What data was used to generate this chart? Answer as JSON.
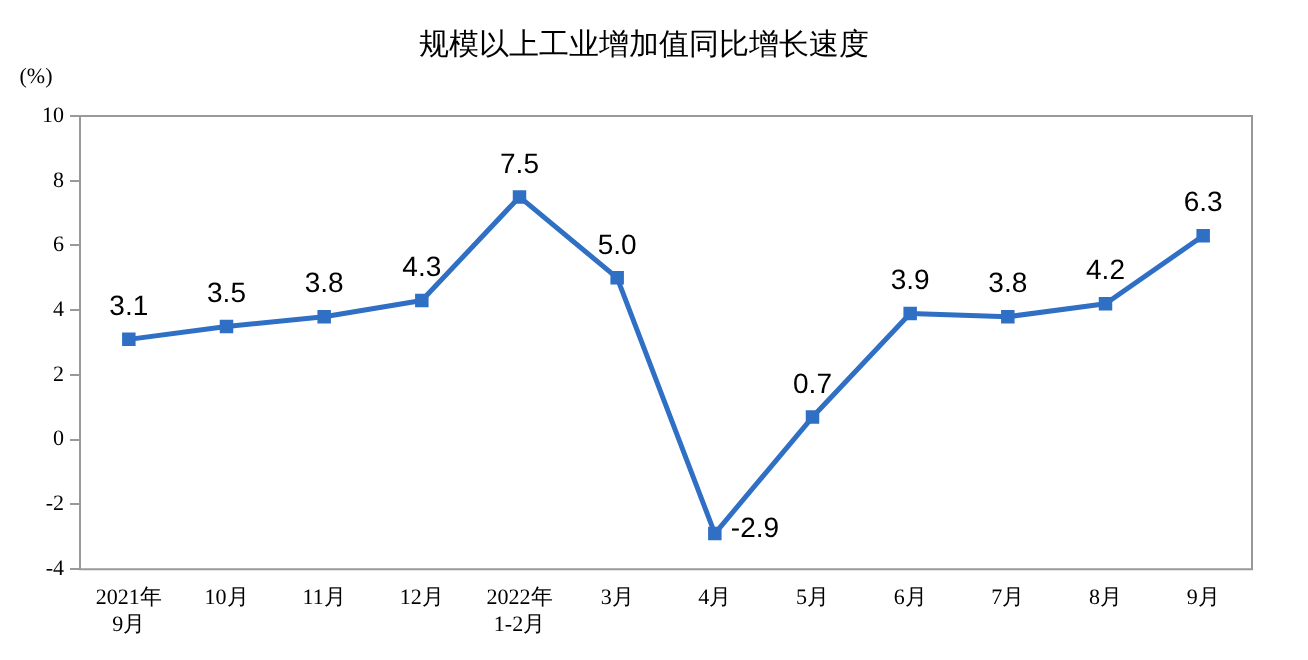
{
  "chart_data": {
    "type": "line",
    "title": "规模以上工业增加值同比增长速度",
    "ylabel": "(%)",
    "categories": [
      "2021年\n9月",
      "10月",
      "11月",
      "12月",
      "2022年\n1-2月",
      "3月",
      "4月",
      "5月",
      "6月",
      "7月",
      "8月",
      "9月"
    ],
    "series": [
      {
        "color": "#2f6fc4",
        "values": [
          3.1,
          3.5,
          3.8,
          4.3,
          7.5,
          5.0,
          -2.9,
          0.7,
          3.9,
          3.8,
          4.2,
          6.3
        ],
        "value_labels": [
          "3.1",
          "3.5",
          "3.8",
          "4.3",
          "7.5",
          "5.0",
          "-2.9",
          "0.7",
          "3.9",
          "3.8",
          "4.2",
          "6.3"
        ]
      }
    ],
    "ylim": [
      -4,
      10
    ],
    "yticks": [
      -4,
      -2,
      0,
      2,
      4,
      6,
      8,
      10
    ],
    "grid": false,
    "legend": false,
    "marker": "square",
    "line_style": "solid"
  }
}
